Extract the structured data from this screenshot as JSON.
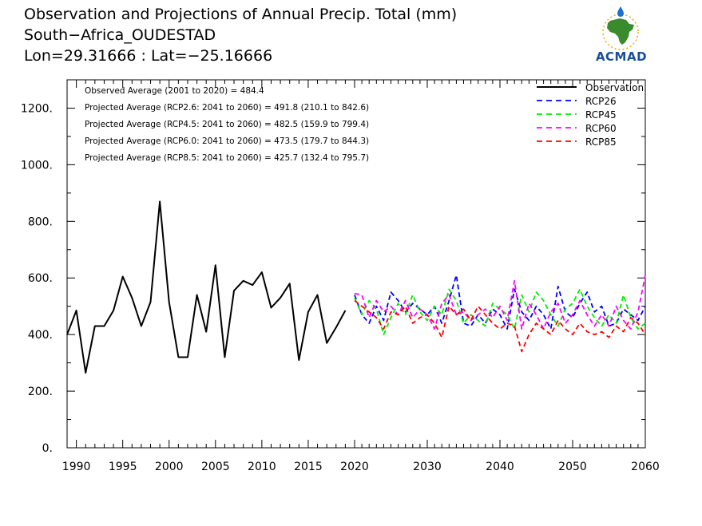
{
  "header": {
    "title": "Observation and Projections of Annual Precip. Total (mm)",
    "location": "South−Africa_OUDESTAD",
    "coords": "Lon=29.31666 : Lat=−25.16666"
  },
  "logo": {
    "text": "ACMAD"
  },
  "stats": [
    "Observed Average (2001 to 2020) = 484.4",
    "Projected Average (RCP2.6: 2041 to 2060) = 491.8 (210.1 to 842.6)",
    "Projected Average (RCP4.5: 2041 to 2060) = 482.5 (159.9 to 799.4)",
    "Projected Average (RCP6.0: 2041 to 2060) = 473.5 (179.7 to 844.3)",
    "Projected Average (RCP8.5: 2041 to 2060) = 425.7 (132.4 to 795.7)"
  ],
  "chart_data": {
    "type": "line",
    "xlim": [
      1989,
      2060
    ],
    "ylim": [
      0,
      1300
    ],
    "x_ticks": [
      1990,
      1995,
      2000,
      2005,
      2010,
      2015,
      2020,
      2030,
      2040,
      2050,
      2060
    ],
    "y_ticks": [
      0,
      200,
      400,
      600,
      800,
      1000,
      1200
    ],
    "y_tick_labels": [
      "0.",
      "200.",
      "400.",
      "600.",
      "800.",
      "1000.",
      "1200."
    ],
    "grid": false,
    "legend_position": "top-right",
    "colors": {
      "Observation": "#000000",
      "RCP26": "#0000ff",
      "RCP45": "#00ee00",
      "RCP60": "#ff00ff",
      "RCP85": "#ff0000"
    },
    "series": [
      {
        "name": "Observation",
        "style": "solid",
        "x": [
          1989,
          1990,
          1991,
          1992,
          1993,
          1994,
          1995,
          1996,
          1997,
          1998,
          1999,
          2000,
          2001,
          2002,
          2003,
          2004,
          2005,
          2006,
          2007,
          2008,
          2009,
          2010,
          2011,
          2012,
          2013,
          2014,
          2015,
          2016,
          2017,
          2018,
          2019
        ],
        "values": [
          400,
          485,
          265,
          430,
          430,
          485,
          605,
          530,
          430,
          515,
          870,
          515,
          320,
          320,
          540,
          410,
          645,
          320,
          555,
          590,
          575,
          620,
          495,
          530,
          580,
          310,
          480,
          540,
          370,
          425,
          485
        ]
      },
      {
        "name": "RCP26",
        "style": "dashed",
        "x": [
          2020,
          2021,
          2022,
          2023,
          2024,
          2025,
          2026,
          2027,
          2028,
          2029,
          2030,
          2031,
          2032,
          2033,
          2034,
          2035,
          2036,
          2037,
          2038,
          2039,
          2040,
          2041,
          2042,
          2043,
          2044,
          2045,
          2046,
          2047,
          2048,
          2049,
          2050,
          2051,
          2052,
          2053,
          2054,
          2055,
          2056,
          2057,
          2058,
          2059,
          2060
        ],
        "values": [
          540,
          470,
          440,
          500,
          450,
          550,
          520,
          480,
          510,
          490,
          470,
          500,
          440,
          520,
          610,
          440,
          430,
          470,
          440,
          490,
          470,
          420,
          560,
          480,
          450,
          500,
          470,
          420,
          570,
          480,
          460,
          510,
          550,
          480,
          500,
          430,
          440,
          490,
          470,
          450,
          500
        ]
      },
      {
        "name": "RCP45",
        "style": "dashed",
        "x": [
          2020,
          2021,
          2022,
          2023,
          2024,
          2025,
          2026,
          2027,
          2028,
          2029,
          2030,
          2031,
          2032,
          2033,
          2034,
          2035,
          2036,
          2037,
          2038,
          2039,
          2040,
          2041,
          2042,
          2043,
          2044,
          2045,
          2046,
          2047,
          2048,
          2049,
          2050,
          2051,
          2052,
          2053,
          2054,
          2055,
          2056,
          2057,
          2058,
          2059,
          2060
        ],
        "values": [
          530,
          470,
          520,
          490,
          400,
          460,
          510,
          470,
          540,
          480,
          450,
          500,
          470,
          560,
          520,
          440,
          470,
          450,
          430,
          510,
          490,
          470,
          420,
          540,
          480,
          550,
          520,
          470,
          430,
          490,
          510,
          560,
          500,
          460,
          430,
          470,
          440,
          540,
          460,
          420,
          440
        ]
      },
      {
        "name": "RCP60",
        "style": "dashed",
        "x": [
          2020,
          2021,
          2022,
          2023,
          2024,
          2025,
          2026,
          2027,
          2028,
          2029,
          2030,
          2031,
          2032,
          2033,
          2034,
          2035,
          2036,
          2037,
          2038,
          2039,
          2040,
          2041,
          2042,
          2043,
          2044,
          2045,
          2046,
          2047,
          2048,
          2049,
          2050,
          2051,
          2052,
          2053,
          2054,
          2055,
          2056,
          2057,
          2058,
          2059,
          2060
        ],
        "values": [
          545,
          540,
          460,
          520,
          480,
          500,
          470,
          520,
          460,
          490,
          470,
          420,
          510,
          540,
          470,
          480,
          450,
          470,
          490,
          460,
          500,
          450,
          590,
          420,
          510,
          470,
          420,
          480,
          510,
          440,
          470,
          520,
          470,
          430,
          470,
          430,
          500,
          450,
          420,
          480,
          610
        ]
      },
      {
        "name": "RCP85",
        "style": "dashed",
        "x": [
          2020,
          2021,
          2022,
          2023,
          2024,
          2025,
          2026,
          2027,
          2028,
          2029,
          2030,
          2031,
          2032,
          2033,
          2034,
          2035,
          2036,
          2037,
          2038,
          2039,
          2040,
          2041,
          2042,
          2043,
          2044,
          2045,
          2046,
          2047,
          2048,
          2049,
          2050,
          2051,
          2052,
          2053,
          2054,
          2055,
          2056,
          2057,
          2058,
          2059,
          2060
        ],
        "values": [
          520,
          500,
          480,
          460,
          420,
          480,
          470,
          500,
          440,
          460,
          470,
          440,
          390,
          500,
          470,
          490,
          450,
          500,
          470,
          440,
          420,
          440,
          430,
          340,
          400,
          440,
          420,
          400,
          450,
          420,
          400,
          440,
          410,
          400,
          410,
          390,
          430,
          410,
          460,
          440,
          400
        ]
      }
    ]
  }
}
